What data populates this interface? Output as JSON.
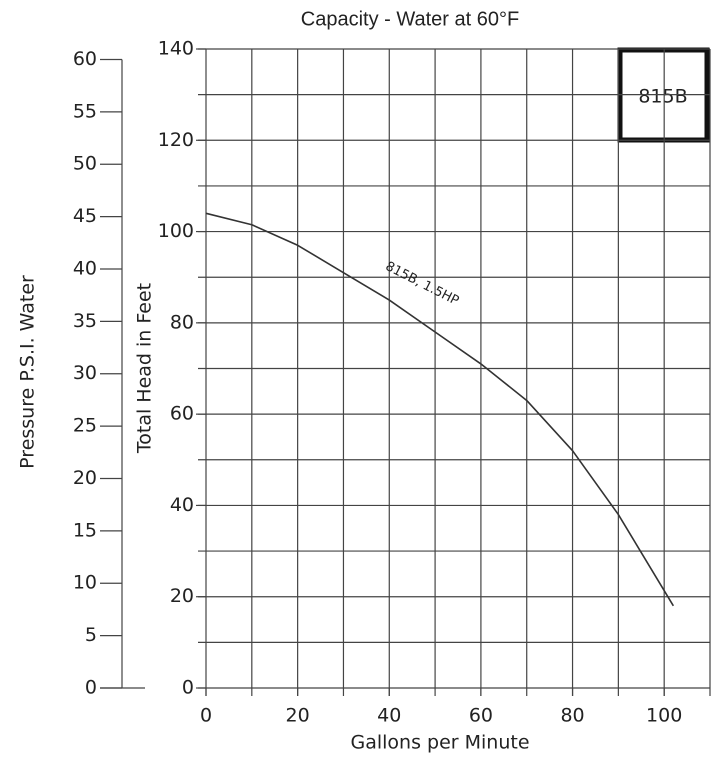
{
  "chart_data": {
    "type": "line",
    "title": "Capacity - Water at 60°F",
    "x_label": "Gallons per Minute",
    "y_label": "Total Head in Feet",
    "y2_label": "Pressure P.S.I. Water",
    "model_box": "815B",
    "x": [
      0,
      10,
      20,
      30,
      40,
      50,
      60,
      70,
      80,
      90,
      102
    ],
    "series": [
      {
        "name": "815B, 1.5HP",
        "color": "#333333",
        "values": [
          104,
          101.5,
          97,
          91,
          85,
          78,
          71,
          63,
          52,
          38,
          18
        ]
      }
    ],
    "xlim": [
      0,
      110
    ],
    "xticks": [
      0,
      20,
      40,
      60,
      80,
      100
    ],
    "ylim": [
      0,
      140
    ],
    "yticks": [
      0,
      20,
      40,
      60,
      80,
      100,
      120,
      140
    ],
    "y2lim": [
      0,
      61
    ],
    "y2ticks": [
      0,
      5,
      10,
      15,
      20,
      25,
      30,
      35,
      40,
      45,
      50,
      55,
      60
    ],
    "grid_step_x": 10,
    "grid_step_y": 10
  }
}
